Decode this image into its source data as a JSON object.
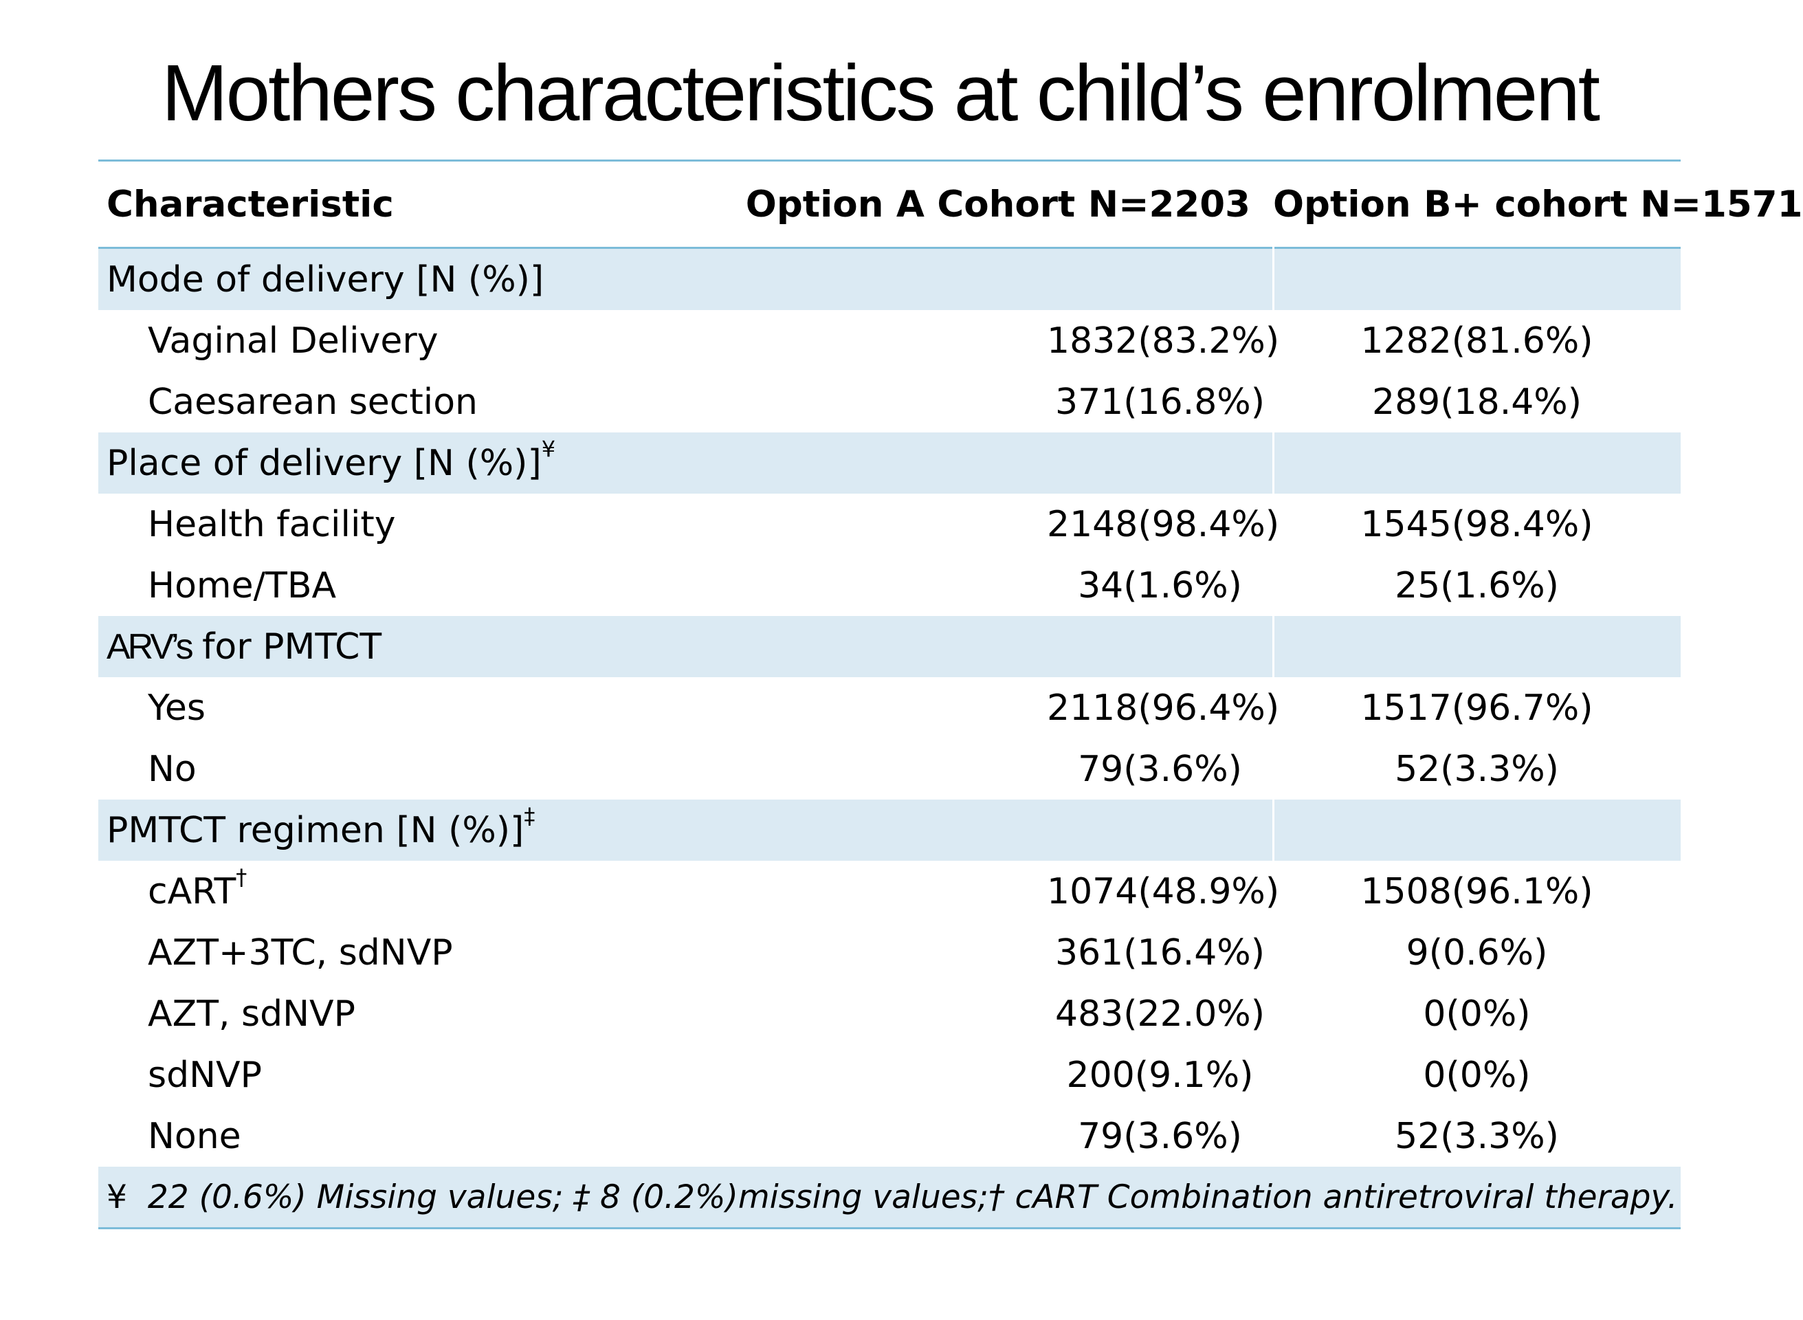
{
  "title": "Mothers characteristics at child’s enrolment",
  "table": {
    "headers": [
      "Characteristic",
      "Option A Cohort N=2203",
      "Option B+ cohort N=1571"
    ],
    "sections": [
      {
        "label": "Mode of delivery [N (%)]",
        "mark": "",
        "rows": [
          {
            "label": "Vaginal Delivery",
            "mark": "",
            "a": "1832(83.2%)",
            "b": "1282(81.6%)"
          },
          {
            "label": "Caesarean section",
            "mark": "",
            "a": "371(16.8%)",
            "b": "289(18.4%)"
          }
        ]
      },
      {
        "label": "Place of delivery [N (%)]",
        "mark": "¥",
        "rows": [
          {
            "label": "Health facility",
            "mark": "",
            "a": "2148(98.4%)",
            "b": "1545(98.4%)"
          },
          {
            "label": "Home/TBA",
            "mark": "",
            "a": "34(1.6%)",
            "b": "25(1.6%)"
          }
        ]
      },
      {
        "label_prefix": "ARV’s",
        "label": "for PMTCT",
        "mark": "",
        "rows": [
          {
            "label": "Yes",
            "mark": "",
            "a": "2118(96.4%)",
            "b": "1517(96.7%)"
          },
          {
            "label": "No",
            "mark": "",
            "a": "79(3.6%)",
            "b": "52(3.3%)"
          }
        ]
      },
      {
        "label": "PMTCT regimen [N (%)]",
        "mark": "‡",
        "rows": [
          {
            "label": "cART",
            "mark": "†",
            "a": "1074(48.9%)",
            "b": "1508(96.1%)"
          },
          {
            "label": "AZT+3TC, sdNVP",
            "mark": "",
            "a": "361(16.4%)",
            "b": "9(0.6%)"
          },
          {
            "label": "AZT, sdNVP",
            "mark": "",
            "a": "483(22.0%)",
            "b": "0(0%)"
          },
          {
            "label": "sdNVP",
            "mark": "",
            "a": "200(9.1%)",
            "b": "0(0%)"
          },
          {
            "label": "None",
            "mark": "",
            "a": "79(3.6%)",
            "b": "52(3.3%)"
          }
        ]
      }
    ],
    "footnote_symbol": "¥",
    "footnote": "22 (0.6%) Missing values; ‡ 8 (0.2%)missing values;† cART Combination antiretroviral  therapy."
  },
  "colors": {
    "section_band": "#dbeaf3",
    "rule": "#7cbcd9"
  }
}
